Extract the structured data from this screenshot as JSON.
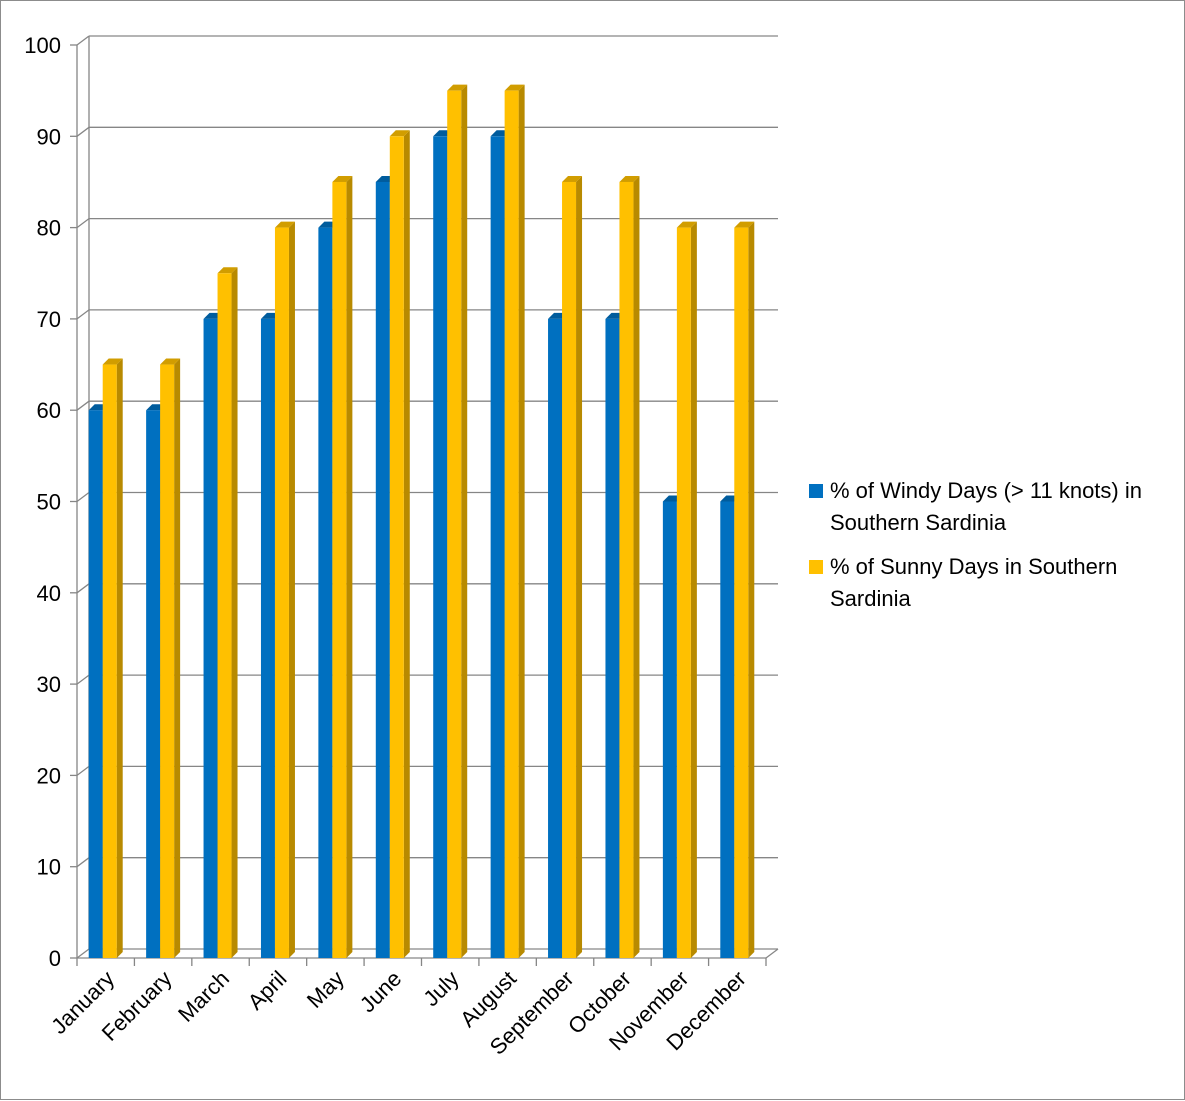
{
  "chart_data": {
    "type": "bar",
    "title": "",
    "xlabel": "",
    "ylabel": "",
    "ylim": [
      0,
      100
    ],
    "ytick_step": 10,
    "grid": true,
    "legend_position": "right",
    "categories": [
      "January",
      "February",
      "March",
      "April",
      "May",
      "June",
      "July",
      "August",
      "September",
      "October",
      "November",
      "December"
    ],
    "series": [
      {
        "name": "% of Windy Days (> 11 knots) in Southern Sardinia",
        "legend_lines": [
          "% of Windy Days (> 11 knots) in",
          "Southern Sardinia"
        ],
        "color": "#0070C0",
        "values": [
          60,
          60,
          70,
          70,
          80,
          85,
          90,
          90,
          70,
          70,
          50,
          50
        ]
      },
      {
        "name": "% of Sunny Days in Southern Sardinia",
        "legend_lines": [
          "% of Sunny Days in Southern",
          "Sardinia"
        ],
        "color": "#FFC000",
        "values": [
          65,
          65,
          75,
          80,
          85,
          90,
          95,
          95,
          85,
          85,
          80,
          80
        ]
      }
    ]
  }
}
